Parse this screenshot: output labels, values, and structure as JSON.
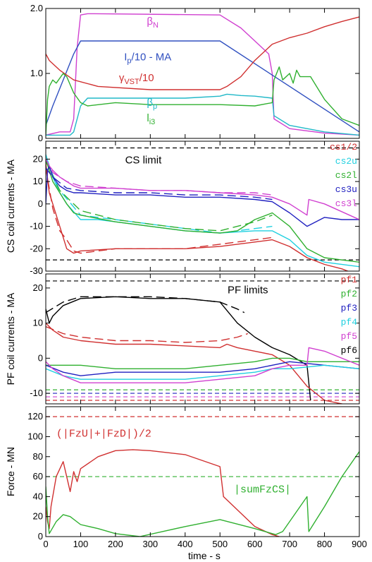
{
  "x_label": "time - s",
  "x_ticks": [
    "0",
    "100",
    "200",
    "300",
    "400",
    "500",
    "600",
    "700",
    "800",
    "900"
  ],
  "chart_data": [
    {
      "type": "line",
      "panel": "plasma",
      "xlim": [
        0,
        900
      ],
      "ylim": [
        0,
        2.0
      ],
      "ylabel": "",
      "y_ticks": [
        "0",
        "1.0",
        "2.0"
      ],
      "y_tick_values": [
        0,
        1.0,
        2.0
      ],
      "annotations": [
        {
          "main": "β",
          "sub": "N",
          "tail": "",
          "color": "#d040d0",
          "x": 290,
          "y": 1.75
        },
        {
          "main": "I",
          "sub": "p",
          "tail": "/10 - MA",
          "color": "#3050c0",
          "x": 225,
          "y": 1.2
        },
        {
          "main": "γ",
          "sub": "VST",
          "tail": "/10",
          "color": "#d03030",
          "x": 210,
          "y": 0.88
        },
        {
          "main": "β",
          "sub": "p",
          "tail": "",
          "color": "#20b8c8",
          "x": 290,
          "y": 0.5
        },
        {
          "main": "l",
          "sub": "i3",
          "tail": "",
          "color": "#30b030",
          "x": 290,
          "y": 0.26
        }
      ],
      "series": [
        {
          "label": "βN",
          "color": "#d040d0",
          "x": [
            0,
            40,
            70,
            80,
            90,
            100,
            120,
            140,
            500,
            560,
            600,
            640,
            650,
            655,
            700,
            800,
            900
          ],
          "y": [
            0.05,
            0.1,
            0.1,
            0.3,
            1.4,
            1.9,
            1.92,
            1.92,
            1.9,
            1.7,
            1.5,
            1.3,
            1.0,
            0.3,
            0.15,
            0.08,
            0.05
          ]
        },
        {
          "label": "Ip/10 - MA",
          "color": "#3050c0",
          "x": [
            0,
            20,
            80,
            100,
            500,
            900
          ],
          "y": [
            0.2,
            0.5,
            1.3,
            1.5,
            1.5,
            0.1
          ]
        },
        {
          "label": "γVST/10",
          "color": "#d03030",
          "x": [
            0,
            5,
            10,
            40,
            80,
            150,
            300,
            500,
            520,
            560,
            600,
            650,
            700,
            750,
            800,
            850,
            900
          ],
          "y": [
            1.3,
            1.25,
            1.2,
            1.05,
            0.9,
            0.8,
            0.75,
            0.75,
            0.8,
            0.95,
            1.2,
            1.45,
            1.55,
            1.62,
            1.72,
            1.8,
            1.87
          ]
        },
        {
          "label": "βp",
          "color": "#20b8c8",
          "x": [
            0,
            70,
            80,
            90,
            100,
            120,
            200,
            400,
            500,
            520,
            560,
            600,
            650,
            655,
            700,
            800,
            900
          ],
          "y": [
            0.05,
            0.05,
            0.1,
            0.3,
            0.5,
            0.62,
            0.62,
            0.62,
            0.65,
            0.68,
            0.66,
            0.65,
            0.62,
            0.35,
            0.2,
            0.1,
            0.05
          ]
        },
        {
          "label": "li3",
          "color": "#30b030",
          "x": [
            0,
            5,
            10,
            20,
            30,
            50,
            60,
            80,
            100,
            120,
            200,
            300,
            500,
            600,
            650,
            655,
            670,
            680,
            700,
            710,
            720,
            730,
            740,
            760,
            800,
            850,
            900
          ],
          "y": [
            0.05,
            0.6,
            0.8,
            0.9,
            0.85,
            1.0,
            0.95,
            0.7,
            0.55,
            0.5,
            0.55,
            0.52,
            0.52,
            0.5,
            0.55,
            0.9,
            1.1,
            0.9,
            1.0,
            0.85,
            1.05,
            0.95,
            0.95,
            0.95,
            0.6,
            0.3,
            0.2
          ]
        }
      ]
    },
    {
      "type": "line",
      "panel": "cs",
      "xlim": [
        0,
        900
      ],
      "ylim": [
        -30,
        28
      ],
      "ylabel": "CS coil currents - MA",
      "y_ticks": [
        "20",
        "10",
        "0",
        "-10",
        "-20",
        "-30"
      ],
      "y_tick_values": [
        20,
        10,
        0,
        -10,
        -20,
        -30
      ],
      "limit_label": "CS limit",
      "limits": [
        25,
        -25
      ],
      "legend": [
        {
          "label": "cs1/2",
          "color": "#d03030"
        },
        {
          "label": "cs2u",
          "color": "#20d0e0"
        },
        {
          "label": "cs2l",
          "color": "#30b030"
        },
        {
          "label": "cs3u",
          "color": "#2020c0"
        },
        {
          "label": "cs3l",
          "color": "#d040d0"
        }
      ],
      "series": [
        {
          "label": "cs1/2",
          "color": "#d03030",
          "x": [
            0,
            10,
            20,
            40,
            60,
            80,
            100,
            200,
            300,
            400,
            500,
            600,
            650,
            700,
            750,
            800,
            850,
            900
          ],
          "y": [
            18,
            5,
            0,
            -10,
            -20,
            -22,
            -21,
            -20,
            -20,
            -20,
            -19,
            -17,
            -16,
            -19,
            -24,
            -27,
            -29,
            -32
          ]
        },
        {
          "label": "cs1/2 ref",
          "color": "#d03030",
          "dashed": true,
          "x": [
            0,
            20,
            40,
            60,
            80,
            100,
            200,
            300,
            400,
            500,
            600,
            650
          ],
          "y": [
            16,
            -2,
            -12,
            -16,
            -21,
            -22,
            -20,
            -20,
            -20,
            -18,
            -16,
            -15
          ]
        },
        {
          "label": "cs2u",
          "color": "#20d0e0",
          "x": [
            0,
            20,
            40,
            60,
            100,
            150,
            200,
            300,
            400,
            500,
            600,
            650,
            700,
            750,
            800,
            900
          ],
          "y": [
            22,
            12,
            5,
            0,
            -7,
            -7,
            -8,
            -10,
            -12,
            -13,
            -12,
            -12,
            -16,
            -23,
            -26,
            -28
          ]
        },
        {
          "label": "cs2u ref",
          "color": "#20d0e0",
          "dashed": true,
          "x": [
            0,
            40,
            100,
            200,
            300,
            400,
            500,
            600,
            650
          ],
          "y": [
            20,
            6,
            -5,
            -7,
            -9,
            -11,
            -13,
            -11,
            -10
          ]
        },
        {
          "label": "cs2l",
          "color": "#30b030",
          "x": [
            0,
            20,
            40,
            60,
            80,
            100,
            200,
            300,
            400,
            500,
            550,
            600,
            650,
            700,
            750,
            800,
            900
          ],
          "y": [
            20,
            10,
            5,
            0,
            -4,
            -5,
            -8,
            -10,
            -12,
            -13,
            -12,
            -7,
            -4,
            -10,
            -20,
            -24,
            -26
          ]
        },
        {
          "label": "cs2l ref",
          "color": "#30b030",
          "dashed": true,
          "x": [
            0,
            40,
            100,
            200,
            300,
            400,
            500,
            600,
            650
          ],
          "y": [
            19,
            6,
            -3,
            -7,
            -9,
            -11,
            -12,
            -8,
            -5
          ]
        },
        {
          "label": "cs3u",
          "color": "#2020c0",
          "x": [
            0,
            5,
            10,
            20,
            40,
            60,
            80,
            100,
            200,
            300,
            400,
            500,
            600,
            650,
            700,
            750,
            800,
            850,
            900
          ],
          "y": [
            0,
            15,
            17,
            12,
            8,
            6,
            5,
            5,
            4,
            4,
            3,
            3,
            2,
            1,
            -4,
            -10,
            -6,
            -7,
            -7
          ]
        },
        {
          "label": "cs3u ref",
          "color": "#2020c0",
          "dashed": true,
          "x": [
            0,
            20,
            60,
            100,
            200,
            300,
            400,
            500,
            600,
            650
          ],
          "y": [
            16,
            12,
            7,
            6,
            5,
            5,
            4,
            4,
            3,
            2
          ]
        },
        {
          "label": "cs3l",
          "color": "#d040d0",
          "x": [
            0,
            10,
            20,
            40,
            60,
            80,
            100,
            200,
            300,
            400,
            500,
            600,
            650,
            700,
            750,
            755,
            800,
            900
          ],
          "y": [
            20,
            17,
            15,
            12,
            10,
            8,
            7,
            7,
            6,
            6,
            5,
            4,
            3,
            0,
            -5,
            2,
            0,
            -7
          ]
        },
        {
          "label": "cs3l ref",
          "color": "#d040d0",
          "dashed": true,
          "x": [
            0,
            20,
            60,
            100,
            200,
            300,
            400,
            500,
            600,
            650
          ],
          "y": [
            20,
            14,
            10,
            8,
            7,
            6,
            6,
            5,
            5,
            4
          ]
        }
      ]
    },
    {
      "type": "line",
      "panel": "pf",
      "xlim": [
        0,
        900
      ],
      "ylim": [
        -13,
        24
      ],
      "ylabel": "PF coil currents - MA",
      "y_ticks": [
        "20",
        "10",
        "0",
        "-10"
      ],
      "y_tick_values": [
        20,
        10,
        0,
        -10
      ],
      "limit_label": "PF limits",
      "limits": [
        22,
        -9,
        -10,
        -11,
        -12
      ],
      "legend": [
        {
          "label": "pf1",
          "color": "#d03030"
        },
        {
          "label": "pf2",
          "color": "#30b030"
        },
        {
          "label": "pf3",
          "color": "#2020c0"
        },
        {
          "label": "pf4",
          "color": "#20d0e0"
        },
        {
          "label": "pf5",
          "color": "#d040d0"
        },
        {
          "label": "pf6",
          "color": "#000000"
        }
      ],
      "series": [
        {
          "label": "pf6",
          "color": "#000000",
          "x": [
            0,
            10,
            20,
            50,
            100,
            200,
            300,
            400,
            500,
            550,
            600,
            650,
            700,
            750,
            760
          ],
          "y": [
            14,
            10,
            12,
            15,
            17,
            17.5,
            17,
            17,
            16,
            10,
            6,
            3,
            1,
            -2,
            -12
          ]
        },
        {
          "label": "pf6 ref",
          "color": "#000000",
          "dashed": true,
          "x": [
            0,
            50,
            100,
            200,
            300,
            400,
            500,
            550,
            570
          ],
          "y": [
            13,
            16,
            17.5,
            17.5,
            17.5,
            17,
            16,
            14,
            13
          ]
        },
        {
          "label": "pf1",
          "color": "#d03030",
          "x": [
            0,
            10,
            20,
            50,
            100,
            200,
            300,
            400,
            500,
            520,
            550,
            600,
            650,
            700,
            750,
            800,
            900
          ],
          "y": [
            10,
            9,
            8,
            6,
            5,
            4,
            4,
            3.5,
            3,
            4,
            3,
            2,
            1,
            -2,
            -8,
            -12,
            -14
          ]
        },
        {
          "label": "pf1 ref",
          "color": "#d03030",
          "dashed": true,
          "x": [
            0,
            50,
            100,
            200,
            300,
            400,
            500,
            550,
            580
          ],
          "y": [
            9,
            7,
            6,
            5,
            5,
            4.5,
            5,
            6,
            7
          ]
        },
        {
          "label": "pf2",
          "color": "#30b030",
          "x": [
            0,
            50,
            100,
            200,
            300,
            400,
            500,
            600,
            650,
            700,
            750,
            800,
            900
          ],
          "y": [
            -2,
            -2,
            -2,
            -3,
            -3,
            -3,
            -2,
            -1,
            0,
            0,
            -1,
            -1,
            -1
          ]
        },
        {
          "label": "pf3",
          "color": "#2020c0",
          "x": [
            0,
            50,
            100,
            200,
            300,
            400,
            500,
            600,
            650,
            700,
            800,
            900
          ],
          "y": [
            -2,
            -4,
            -5,
            -4,
            -4,
            -4,
            -4,
            -3,
            -2,
            -1,
            -2,
            -3
          ]
        },
        {
          "label": "pf4",
          "color": "#20d0e0",
          "x": [
            0,
            50,
            100,
            200,
            300,
            400,
            500,
            600,
            650,
            700,
            800,
            900
          ],
          "y": [
            -3,
            -5,
            -6,
            -6,
            -6,
            -6,
            -5,
            -4,
            -3,
            -3,
            -2,
            -3
          ]
        },
        {
          "label": "pf5",
          "color": "#d040d0",
          "x": [
            0,
            20,
            50,
            100,
            200,
            300,
            400,
            500,
            600,
            650,
            700,
            750,
            755,
            800,
            900
          ],
          "y": [
            -1,
            -3,
            -5,
            -7,
            -7,
            -7,
            -7,
            -6,
            -5,
            -3,
            -2,
            -2,
            3,
            2,
            -2
          ]
        }
      ]
    },
    {
      "type": "line",
      "panel": "force",
      "xlim": [
        0,
        900
      ],
      "ylim": [
        0,
        130
      ],
      "ylabel": "Force - MN",
      "y_ticks": [
        "0",
        "20",
        "40",
        "60",
        "80",
        "100",
        "120"
      ],
      "y_tick_values": [
        0,
        20,
        40,
        60,
        80,
        100,
        120
      ],
      "labels": [
        {
          "text": "(|FzU|+|FzD|)/2",
          "color": "#d03030",
          "x": 30,
          "y": 100
        },
        {
          "text": "|sumFzCS|",
          "color": "#30b030",
          "x": 540,
          "y": 44
        }
      ],
      "limits": [
        {
          "value": 120,
          "color": "#d03030"
        },
        {
          "value": 60,
          "color": "#30b030"
        }
      ],
      "series": [
        {
          "label": "(|FzU|+|FzD|)/2",
          "color": "#d03030",
          "x": [
            0,
            5,
            10,
            15,
            30,
            50,
            70,
            80,
            90,
            100,
            150,
            200,
            250,
            300,
            400,
            500,
            510,
            600,
            650,
            670
          ],
          "y": [
            30,
            15,
            8,
            30,
            60,
            75,
            45,
            65,
            55,
            68,
            80,
            86,
            87,
            86,
            82,
            70,
            40,
            10,
            2,
            0
          ]
        },
        {
          "label": "|sumFzCS|",
          "color": "#30b030",
          "x": [
            0,
            5,
            10,
            30,
            50,
            70,
            100,
            150,
            200,
            270,
            400,
            500,
            600,
            660,
            680,
            750,
            755,
            800,
            850,
            900
          ],
          "y": [
            50,
            20,
            3,
            15,
            22,
            20,
            12,
            8,
            3,
            0,
            10,
            17,
            8,
            2,
            5,
            40,
            5,
            30,
            60,
            85
          ]
        }
      ]
    }
  ]
}
